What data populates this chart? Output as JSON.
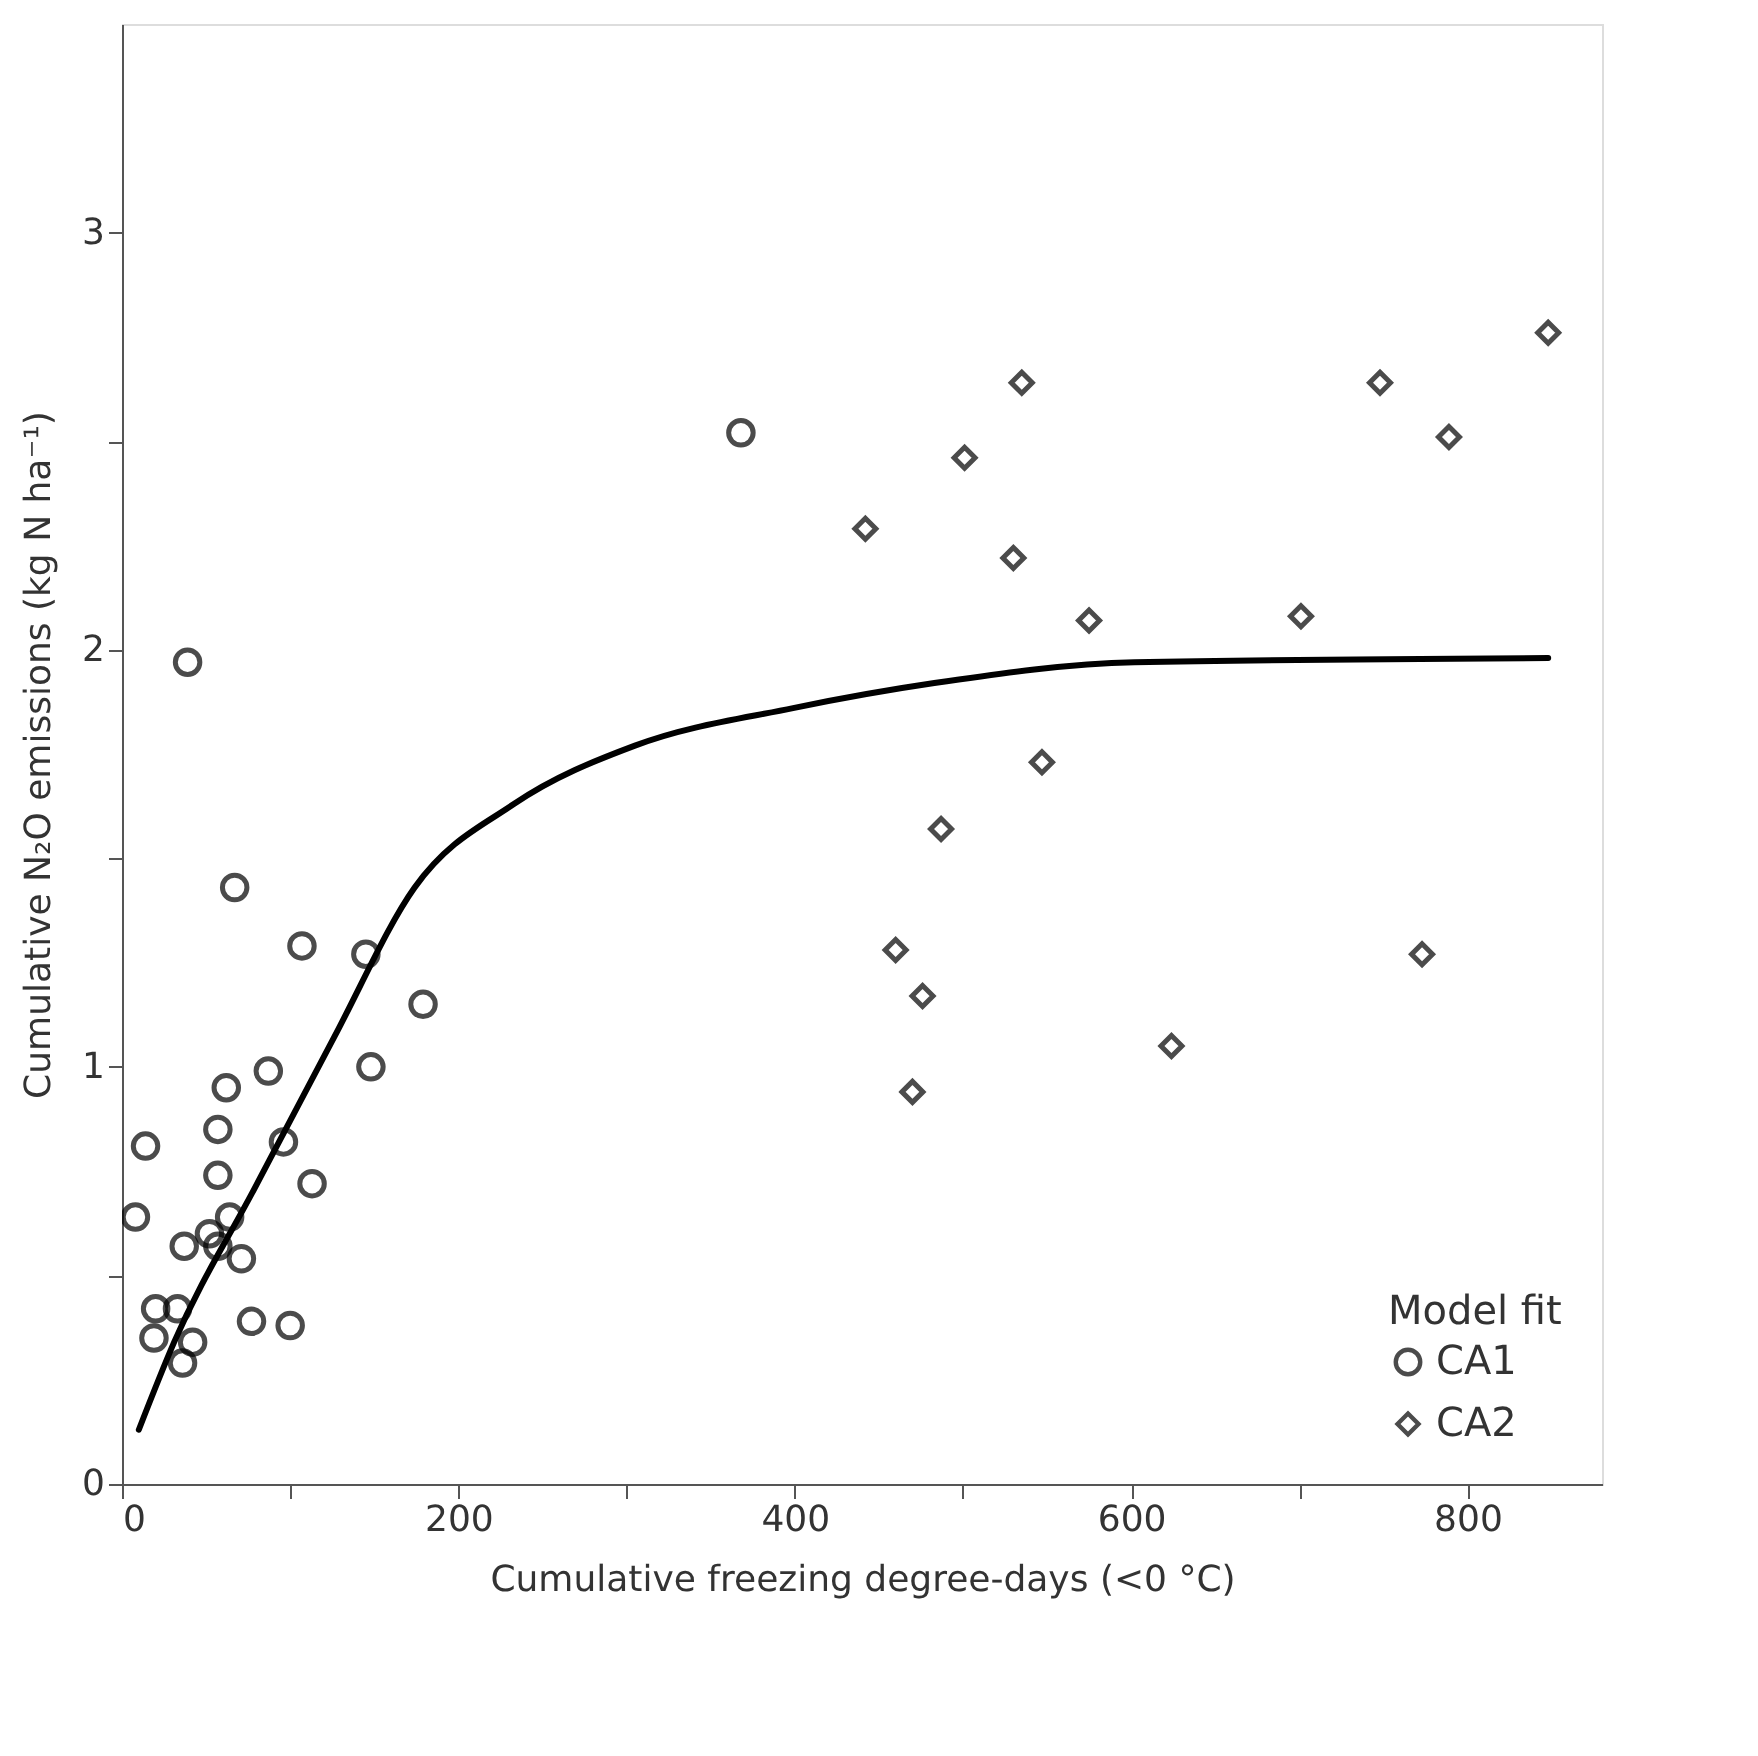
{
  "chart_data": {
    "type": "scatter",
    "xlabel": "Cumulative freezing degree-days (<0 °C)",
    "ylabel": "Cumulative N₂O emissions (kg N ha⁻¹)",
    "legend_title": "Model fit",
    "legend": "bottom right",
    "grid": false,
    "xlim": [
      0,
      880
    ],
    "ylim": [
      0,
      3.5
    ],
    "xticks": [
      0,
      {
        "value": 100,
        "label": null
      },
      200,
      {
        "value": 300,
        "label": null
      },
      400,
      {
        "value": 500,
        "label": null
      },
      600,
      {
        "value": 700,
        "label": null
      },
      800
    ],
    "yticks": [
      0,
      {
        "value": 0.5,
        "label": null
      },
      1,
      {
        "value": 1.5,
        "label": null
      },
      2,
      {
        "value": 2.5,
        "label": null
      },
      3
    ],
    "series": [
      {
        "name": "CA1",
        "marker": "circle",
        "color": "#000000",
        "x": [
          39,
          67,
          107,
          145,
          179,
          148,
          87,
          62,
          96,
          14,
          57,
          57,
          113,
          64,
          8,
          52,
          37,
          57,
          71,
          20,
          33,
          19,
          42,
          36,
          77,
          100,
          368
        ],
        "values": [
          1.97,
          1.43,
          1.29,
          1.27,
          1.15,
          1.0,
          0.99,
          0.95,
          0.82,
          0.81,
          0.85,
          0.74,
          0.72,
          0.64,
          0.64,
          0.6,
          0.57,
          0.57,
          0.54,
          0.42,
          0.42,
          0.35,
          0.34,
          0.29,
          0.39,
          0.38,
          2.52
        ]
      },
      {
        "name": "CA2",
        "marker": "diamond",
        "color": "#000000",
        "x": [
          535,
          748,
          848,
          501,
          789,
          442,
          530,
          575,
          701,
          547,
          487,
          460,
          476,
          470,
          624,
          773
        ],
        "values": [
          2.64,
          2.64,
          2.76,
          2.46,
          2.51,
          2.29,
          2.22,
          2.07,
          2.08,
          1.73,
          1.57,
          1.28,
          1.17,
          0.94,
          1.05,
          1.27
        ]
      },
      {
        "type": "line",
        "line_style": "solid",
        "color": "#000000",
        "x": [
          10,
          31,
          79,
          126,
          174,
          233,
          305,
          399,
          483,
          602,
          848
        ],
        "values": [
          0.13,
          0.34,
          0.71,
          1.07,
          1.43,
          1.63,
          1.77,
          1.86,
          1.92,
          1.97,
          1.98
        ]
      }
    ]
  }
}
